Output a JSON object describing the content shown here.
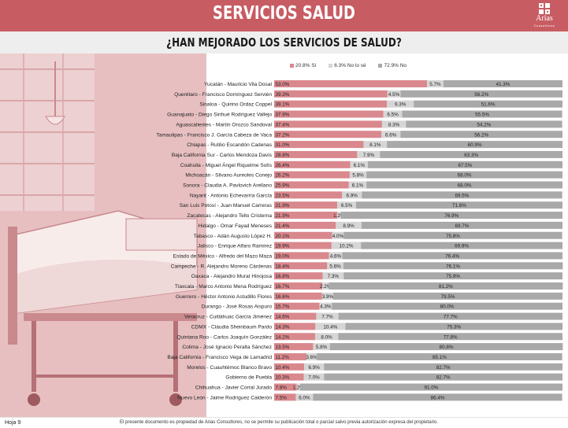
{
  "header": {
    "title": "SERVICIOS SALUD",
    "logo_text": "Arias",
    "logo_subtext": "Consultores"
  },
  "question": "¿HAN MEJORADO LOS SERVICIOS DE SALUD?",
  "colors": {
    "si": "#d9888d",
    "no_lo_se": "#d6d6d6",
    "no": "#a9a9a9",
    "accent": "#c85c63"
  },
  "footer": {
    "page": "Hoja 9",
    "note": "El presente documento es propiedad de Arias Consultores, no se permite su publicación total o parcial salvo previa autorización expresa del propietario."
  },
  "chart_data": {
    "type": "bar",
    "orientation": "horizontal",
    "stacked": true,
    "title": "¿HAN MEJORADO LOS SERVICIOS DE SALUD?",
    "legend_position": "top",
    "xlim": [
      0,
      100
    ],
    "series": [
      {
        "name": "Sí",
        "legend_label": "20.8% Sí",
        "values": [
          53.0,
          39.3,
          39.1,
          37.9,
          37.4,
          37.2,
          31.0,
          28.8,
          26.4,
          26.2,
          25.9,
          23.5,
          21.9,
          21.9,
          21.4,
          20.1,
          19.9,
          19.0,
          18.4,
          16.8,
          16.7,
          16.6,
          15.7,
          14.6,
          14.3,
          14.2,
          13.5,
          11.2,
          10.4,
          10.3,
          7.8,
          7.5
        ],
        "labels": [
          "53.0%",
          "39.3%",
          "39.1%",
          "37.9%",
          "37.4%",
          "37.2%",
          "31.0%",
          "28.8%",
          "26.4%",
          "26.2%",
          "25.9%",
          "23.5%",
          "21.9%",
          "21.9%",
          "21.4%",
          "20.1%",
          "19.9%",
          "19.0%",
          "18.4%",
          "16.8%",
          "16.7%",
          "16.6%",
          "15.7%",
          "14.6%",
          "14.3%",
          "14.2%",
          "13.5%",
          "11.2%",
          "10.4%",
          "10.3%",
          "7.8%",
          "7.5%"
        ]
      },
      {
        "name": "No lo sé",
        "legend_label": "6.3% No lo sé",
        "values": [
          5.7,
          4.5,
          9.3,
          6.5,
          8.3,
          6.6,
          8.1,
          7.9,
          6.1,
          5.8,
          6.1,
          6.9,
          6.5,
          1.2,
          8.9,
          4.0,
          10.2,
          4.6,
          5.6,
          7.3,
          2.2,
          3.9,
          4.3,
          7.7,
          10.4,
          8.0,
          5.8,
          3.6,
          6.9,
          7.0,
          1.2,
          6.0
        ],
        "labels": [
          "5.7%",
          "4.5%",
          "9.3%",
          "6.5%",
          "8.3%",
          "6.6%",
          "8.1%",
          "7.9%",
          "6.1%",
          "5.8%",
          "6.1%",
          "6.9%",
          "6.5%",
          "1.2%",
          "8.9%",
          "4.0%",
          "10.2%",
          "4.6%",
          "5.6%",
          "7.3%",
          "2.2%",
          "3.9%",
          "4.3%",
          "7.7%",
          "10.4%",
          "8.0%",
          "5.8%",
          "3.6%",
          "6.9%",
          "7.0%",
          "1.2%",
          "6.0%"
        ]
      },
      {
        "name": "No",
        "legend_label": "72.9% No",
        "values": [
          41.3,
          56.2,
          51.6,
          55.5,
          54.2,
          56.2,
          60.9,
          63.3,
          67.5,
          68.0,
          68.0,
          69.5,
          71.6,
          76.9,
          69.7,
          75.8,
          69.9,
          76.4,
          76.1,
          75.9,
          81.2,
          79.5,
          80.0,
          77.7,
          75.3,
          77.8,
          80.8,
          85.1,
          82.7,
          82.7,
          91.0,
          86.4
        ],
        "labels": [
          "41.3%",
          "56.2%",
          "51.6%",
          "55.5%",
          "54.2%",
          "56.2%",
          "60.9%",
          "63.3%",
          "67.5%",
          "68.0%",
          "68.0%",
          "69.5%",
          "71.6%",
          "76.9%",
          "69.7%",
          "75.8%",
          "69.9%",
          "76.4%",
          "76.1%",
          "75.9%",
          "81.2%",
          "79.5%",
          "80.0%",
          "77.7%",
          "75.3%",
          "77.8%",
          "80.8%",
          "85.1%",
          "82.7%",
          "82.7%",
          "91.0%",
          "86.4%"
        ]
      }
    ],
    "categories": [
      "Yucatán  -  Mauricio Vila Dosal",
      "Querétaro - Francisco Domínguez Servién",
      "Sinaloa  -  Quirino Ordaz Coppel",
      "Guanajuato - Diego Sinhué Rodríguez Vallejo",
      "Aguascalientes - Martín Orozco Sandoval",
      "Tamaulipas - Francisco J. García Cabeza de Vaca",
      "Chiapas - Rutilio Escandón Cadenas",
      "Baja California Sur - Carlos Mendoza Davis",
      "Coahuila - Miguel Ángel Riquelme Solís",
      "Michoacán - Silvano Aureoles Conejo",
      "Sonora - Claudia A. Pavlovich Arellano",
      "Nayarit - Antonio Echevarría García",
      "San Luis Potosí - Juan Manuel Carreras",
      "Zacatecas - Alejandro Tello Cristerna",
      "Hidalgo - Omar Fayad Meneses",
      "Tabasco - Adán Augusto López H.",
      "Jalisco - Enrique Alfaro Ramírez",
      "Estado de México - Alfredo del Mazo Maza",
      "Campeche - R. Alejandro Moreno Cárdenas",
      "Oaxaca  -  Alejandro Murat Hinojosa",
      "Tlaxcala - Marco Antonio Mena Rodríguez",
      "Guerrero - Héctor Antonio Astudillo Flores",
      "Durango - José Rosas Aispuro",
      "Veracruz - Cuitláhuac García Jiménez",
      "CDMX - Claudia Sheinbaum Pardo",
      "Quintana Roo - Carlos Joaquín González",
      "Colima - José Ignacio Peralta Sánchez",
      "Baja California - Francisco Vega de Lamadrid",
      "Morelos - Cuauhtémoc Blanco Bravo",
      "Gobierno de Puebla",
      "Chihuahua - Javier Corral Jurado",
      "Nuevo León  -  Jaime Rodríguez Calderón"
    ]
  }
}
